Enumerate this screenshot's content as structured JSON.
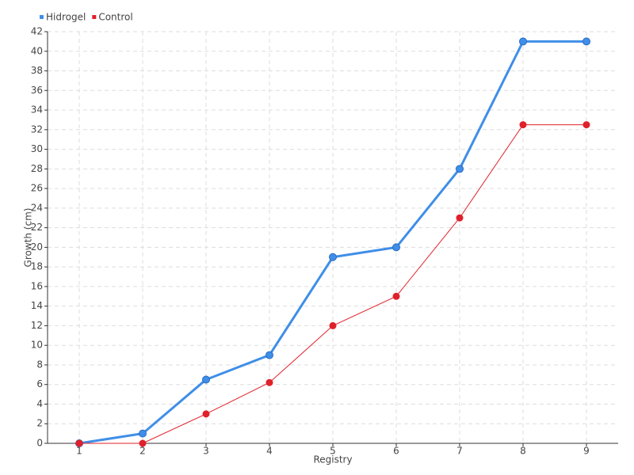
{
  "chart_data": {
    "type": "line",
    "x_label": "Registry",
    "y_label": "Growth (cm)",
    "x": [
      1,
      2,
      3,
      4,
      5,
      6,
      7,
      8,
      9
    ],
    "xlim": [
      0.5,
      9.5
    ],
    "xticks": [
      1,
      2,
      3,
      4,
      5,
      6,
      7,
      8,
      9
    ],
    "ylim": [
      0,
      42
    ],
    "yticks": [
      0,
      2,
      4,
      6,
      8,
      10,
      12,
      14,
      16,
      18,
      20,
      22,
      24,
      26,
      28,
      30,
      32,
      34,
      36,
      38,
      40,
      42
    ],
    "grid": true,
    "legend": "top-left",
    "series": [
      {
        "name": "Hidrogel",
        "color": "#3f8ee8",
        "values": [
          0,
          1,
          6.5,
          9,
          19,
          20,
          28,
          41,
          41
        ]
      },
      {
        "name": "Control",
        "color": "#e0202a",
        "values": [
          0,
          0,
          3,
          6.2,
          12,
          15,
          23,
          32.5,
          32.5
        ]
      }
    ]
  }
}
